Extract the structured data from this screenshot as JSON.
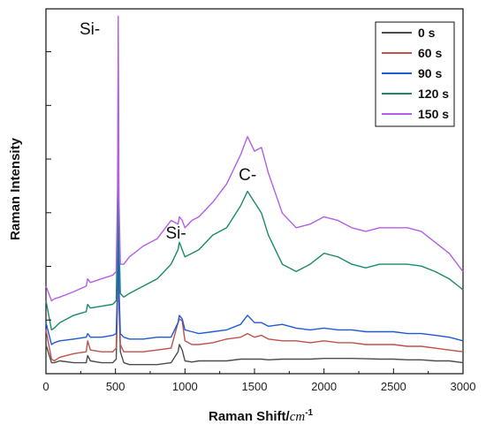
{
  "chart_data": {
    "type": "line",
    "xlabel_main": "Raman Shift/",
    "xlabel_unit": "cm",
    "xlabel_sup": "-1",
    "ylabel": "Raman Intensity",
    "xlim": [
      0,
      3000
    ],
    "ylim": [
      0,
      100
    ],
    "x_ticks": [
      0,
      500,
      1000,
      1500,
      2000,
      2500,
      3000
    ],
    "x_tick_labels": [
      "0",
      "500",
      "1000",
      "1500",
      "2000",
      "2500",
      "3000"
    ],
    "y_tick_labels_shown": false,
    "grid": false,
    "legend_position": "top-right",
    "annotations": [
      {
        "text": "Si-",
        "x": 315,
        "y": 93
      },
      {
        "text": "Si-",
        "x": 935,
        "y": 37
      },
      {
        "text": "C-",
        "x": 1450,
        "y": 53
      }
    ],
    "x": [
      0,
      40,
      60,
      100,
      200,
      290,
      300,
      320,
      400,
      480,
      505,
      515,
      520,
      525,
      535,
      560,
      600,
      700,
      800,
      900,
      950,
      960,
      980,
      1000,
      1050,
      1100,
      1200,
      1300,
      1400,
      1450,
      1500,
      1550,
      1600,
      1700,
      1800,
      1900,
      2000,
      2100,
      2200,
      2300,
      2400,
      2500,
      2600,
      2700,
      2800,
      2900,
      3000
    ],
    "series": [
      {
        "name": "0 s",
        "color": "#4d4d4d",
        "values": [
          8,
          3,
          3,
          3.5,
          3,
          3,
          5,
          3.5,
          3,
          3,
          4,
          20,
          65,
          20,
          6,
          3,
          2.5,
          2.5,
          2.5,
          3,
          6,
          8,
          6.5,
          3.5,
          3.2,
          3.5,
          3.5,
          3.5,
          4,
          4,
          4,
          4,
          3.8,
          4,
          4,
          4,
          4.2,
          4.2,
          4.2,
          4.1,
          4,
          4,
          3.8,
          3.8,
          3.5,
          3.5,
          3
        ]
      },
      {
        "name": "60 s",
        "color": "#c0504d",
        "values": [
          12,
          4,
          3.5,
          4.5,
          5.5,
          6,
          9,
          6.5,
          6,
          6,
          7,
          22,
          70,
          22,
          8,
          6,
          6,
          6,
          6.5,
          7,
          14,
          15,
          14.5,
          9,
          8,
          8,
          8.5,
          9.5,
          10,
          11,
          10,
          10.5,
          9.5,
          9,
          9,
          8.5,
          9,
          8.5,
          8.5,
          8,
          8,
          8,
          7.5,
          7.5,
          7,
          6.5,
          6
        ]
      },
      {
        "name": "90 s",
        "color": "#1f5ad6",
        "values": [
          14,
          8,
          8.5,
          9,
          9.5,
          10,
          11,
          10,
          10,
          10.5,
          11,
          24,
          72,
          24,
          11,
          10,
          9.5,
          9.5,
          10,
          10,
          14,
          16,
          15,
          12,
          11.5,
          11,
          11.5,
          12,
          13.5,
          16,
          14,
          14,
          13,
          13.5,
          12.5,
          12,
          12.5,
          12,
          12,
          11.5,
          11.5,
          11.5,
          11,
          11,
          10.5,
          10,
          9
        ]
      },
      {
        "name": "120 s",
        "color": "#1a8a6a",
        "values": [
          20,
          12,
          12.5,
          14,
          16,
          17,
          19,
          18,
          18.5,
          19,
          20,
          40,
          85,
          38,
          22,
          21,
          22,
          24,
          26,
          30,
          34,
          36,
          34,
          32,
          33,
          34,
          38,
          40,
          46,
          50,
          47,
          44,
          38,
          30,
          28,
          30,
          33,
          32,
          30,
          29,
          30,
          30,
          30,
          29.5,
          28,
          26,
          23
        ]
      },
      {
        "name": "150 s",
        "color": "#b45ee6",
        "values": [
          24,
          20,
          20.5,
          21,
          22.5,
          24,
          26,
          25,
          26,
          27,
          28,
          50,
          98,
          48,
          30,
          30,
          32,
          35,
          37,
          42,
          41,
          43,
          42,
          40,
          42,
          43,
          47,
          52,
          60,
          65,
          61,
          62,
          55,
          44,
          40,
          41,
          43,
          42,
          40,
          39,
          40,
          40,
          40,
          39,
          36,
          33,
          28
        ]
      }
    ]
  }
}
